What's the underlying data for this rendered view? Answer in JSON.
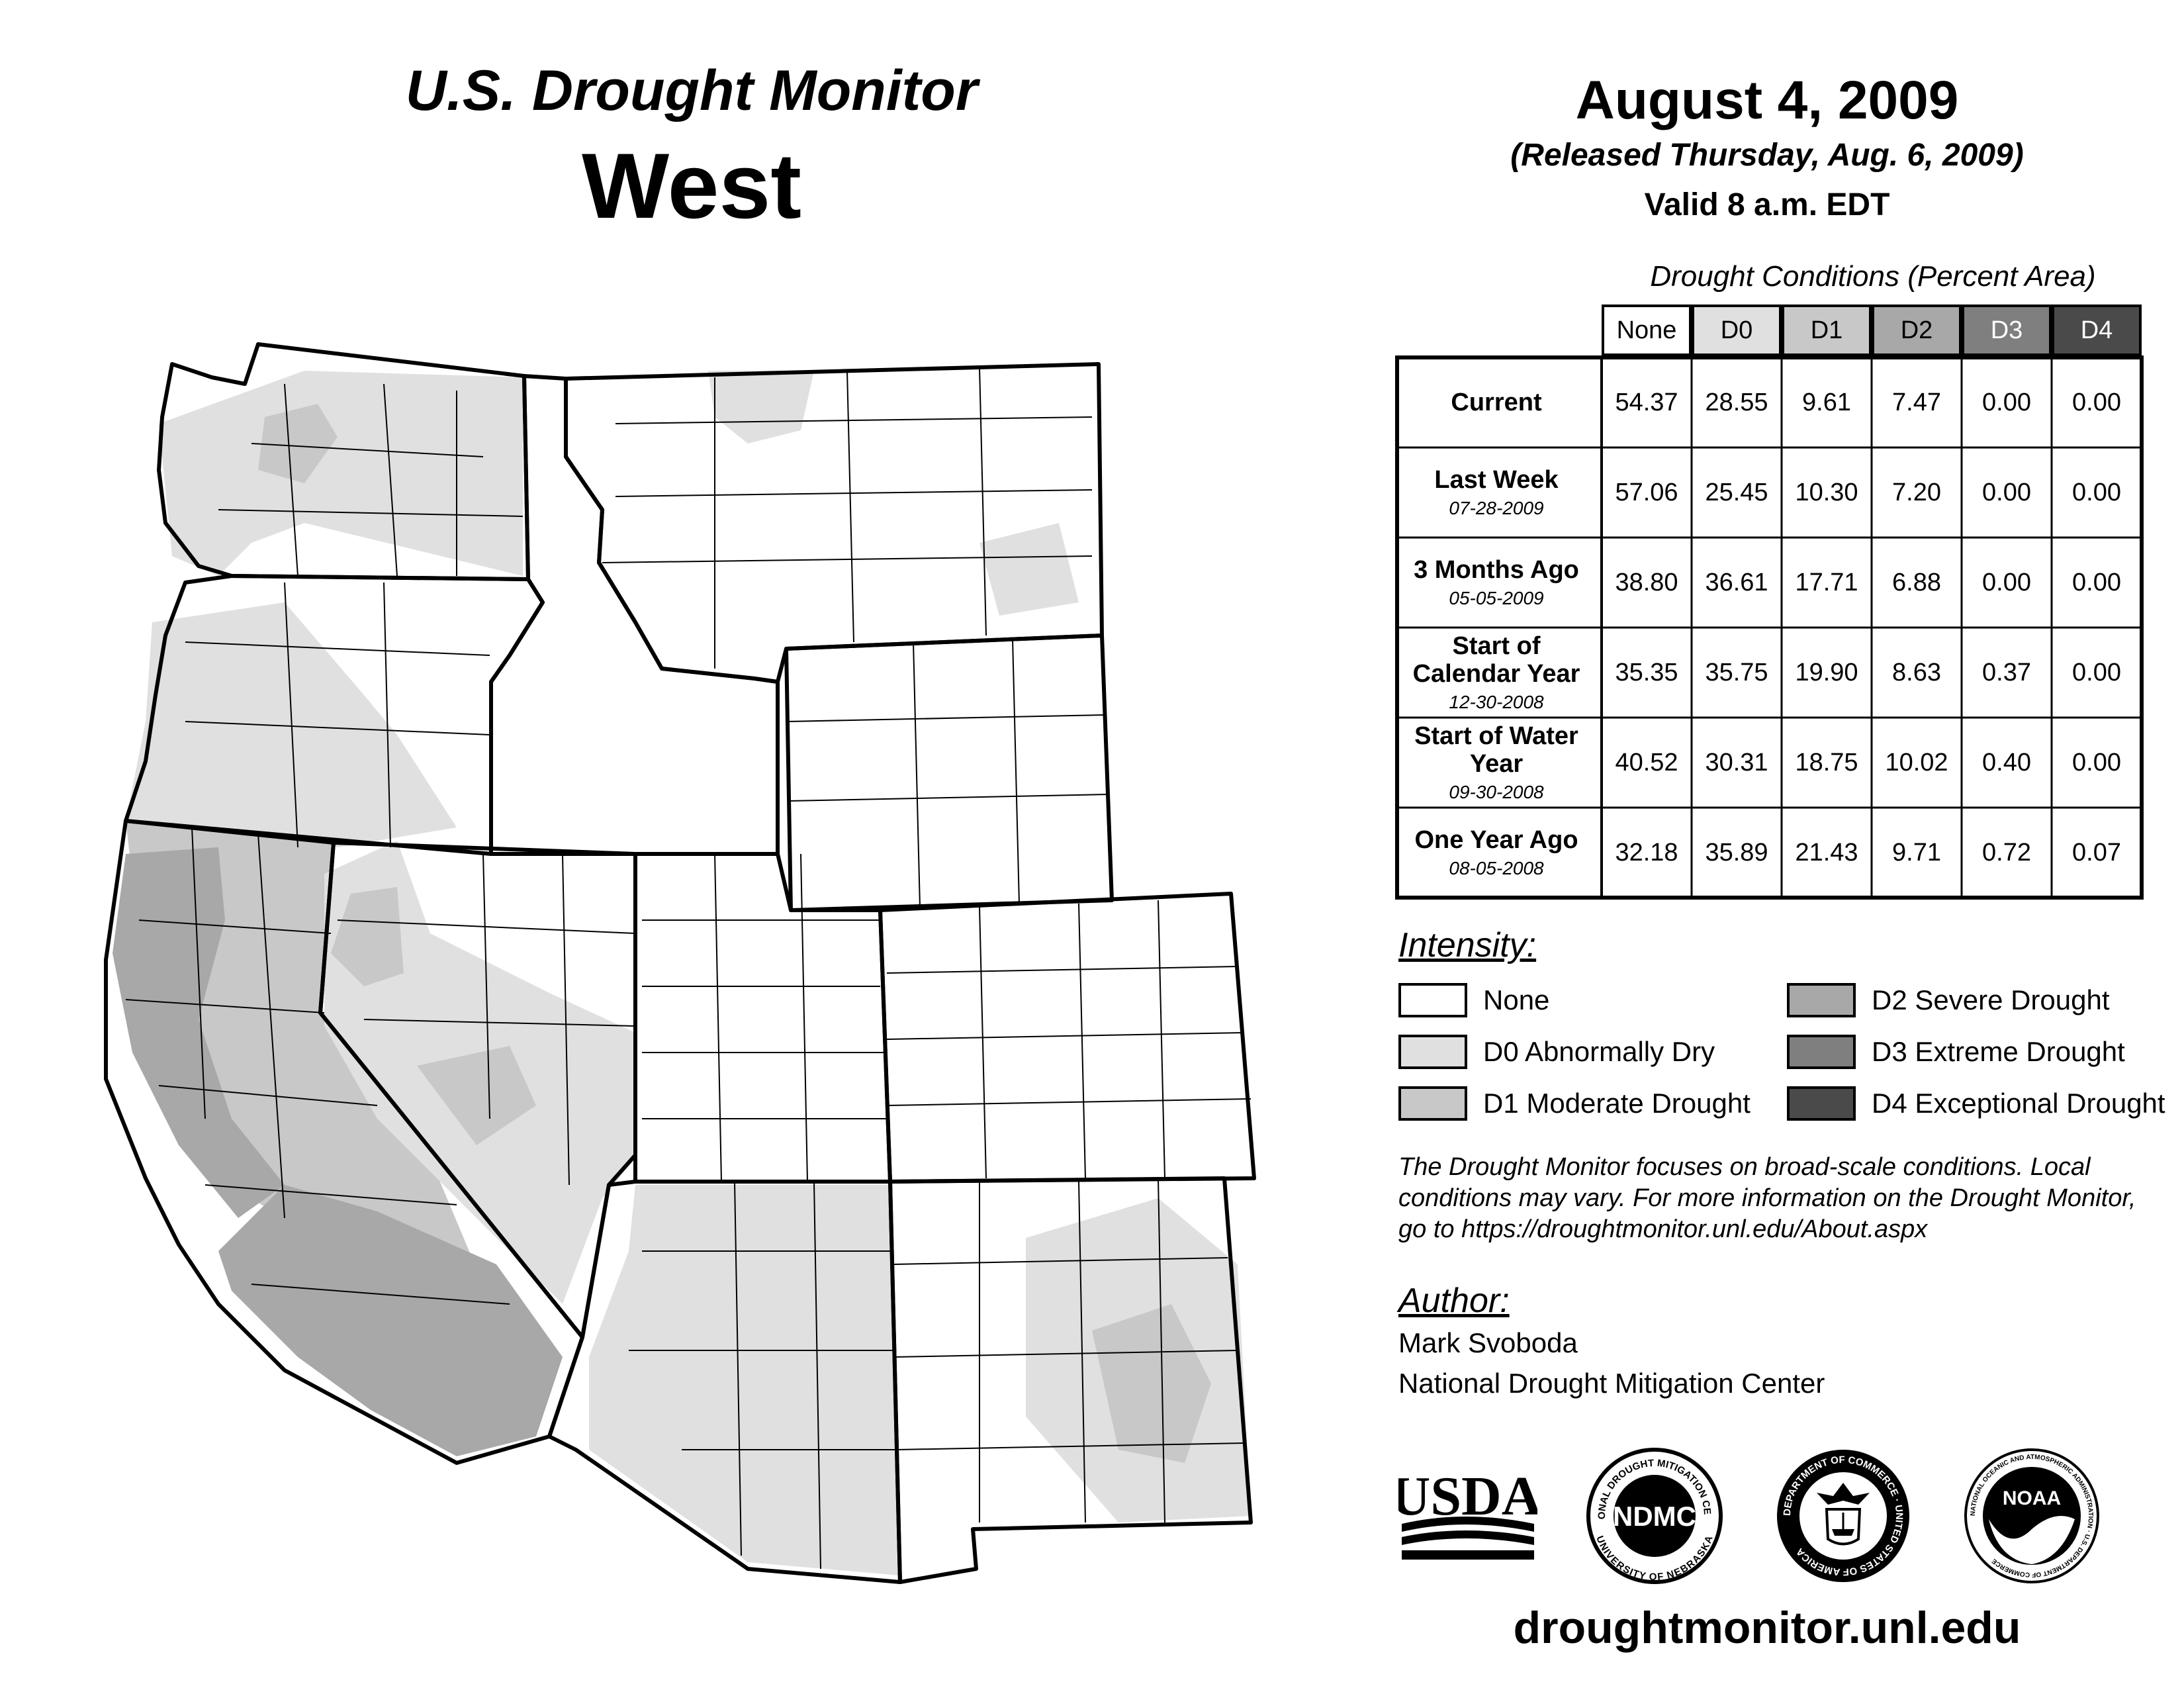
{
  "header": {
    "title": "U.S. Drought Monitor",
    "region": "West",
    "date": "August 4, 2009",
    "released": "(Released Thursday, Aug. 6, 2009)",
    "valid": "Valid 8 a.m. EDT"
  },
  "table": {
    "title": "Drought Conditions (Percent Area)",
    "columns": [
      "None",
      "D0",
      "D1",
      "D2",
      "D3",
      "D4"
    ],
    "column_colors": [
      "#ffffff",
      "#e0e0e0",
      "#c8c8c8",
      "#a8a8a8",
      "#7f7f7f",
      "#4a4a4a"
    ],
    "rows": [
      {
        "label": "Current",
        "date": "",
        "values": [
          "54.37",
          "28.55",
          "9.61",
          "7.47",
          "0.00",
          "0.00"
        ]
      },
      {
        "label": "Last Week",
        "date": "07-28-2009",
        "values": [
          "57.06",
          "25.45",
          "10.30",
          "7.20",
          "0.00",
          "0.00"
        ]
      },
      {
        "label": "3 Months Ago",
        "date": "05-05-2009",
        "values": [
          "38.80",
          "36.61",
          "17.71",
          "6.88",
          "0.00",
          "0.00"
        ]
      },
      {
        "label": "Start of Calendar Year",
        "date": "12-30-2008",
        "values": [
          "35.35",
          "35.75",
          "19.90",
          "8.63",
          "0.37",
          "0.00"
        ]
      },
      {
        "label": "Start of Water Year",
        "date": "09-30-2008",
        "values": [
          "40.52",
          "30.31",
          "18.75",
          "10.02",
          "0.40",
          "0.00"
        ]
      },
      {
        "label": "One Year Ago",
        "date": "08-05-2008",
        "values": [
          "32.18",
          "35.89",
          "21.43",
          "9.71",
          "0.72",
          "0.07"
        ]
      }
    ]
  },
  "legend": {
    "title": "Intensity:",
    "items": [
      {
        "label": "None",
        "color": "#ffffff"
      },
      {
        "label": "D0 Abnormally Dry",
        "color": "#e0e0e0"
      },
      {
        "label": "D1 Moderate Drought",
        "color": "#c8c8c8"
      },
      {
        "label": "D2 Severe Drought",
        "color": "#a8a8a8"
      },
      {
        "label": "D3 Extreme Drought",
        "color": "#7f7f7f"
      },
      {
        "label": "D4 Exceptional Drought",
        "color": "#4a4a4a"
      }
    ]
  },
  "note": "The Drought Monitor focuses on broad-scale conditions. Local conditions may vary. For more information on the Drought Monitor, go to https://droughtmonitor.unl.edu/About.aspx",
  "author": {
    "heading": "Author:",
    "name": "Mark Svoboda",
    "org": "National Drought Mitigation Center"
  },
  "logos": {
    "usda": "USDA",
    "ndmc": "NDMC",
    "ndmc_ring_top": "NATIONAL DROUGHT MITIGATION CENTER",
    "ndmc_ring_bottom": "UNIVERSITY OF NEBRASKA",
    "commerce_ring": "DEPARTMENT OF COMMERCE · UNITED STATES OF AMERICA",
    "noaa": "NOAA",
    "noaa_ring": "NATIONAL OCEANIC AND ATMOSPHERIC ADMINISTRATION · U.S. DEPARTMENT OF COMMERCE"
  },
  "url": "droughtmonitor.unl.edu",
  "map": {
    "regions": [
      {
        "name": "coastal-washington-d0",
        "category": "D0"
      },
      {
        "name": "oregon-west-d0",
        "category": "D0"
      },
      {
        "name": "california-north-d1",
        "category": "D1"
      },
      {
        "name": "california-coast-d2",
        "category": "D2"
      },
      {
        "name": "california-south-d2",
        "category": "D2"
      },
      {
        "name": "nevada-d0",
        "category": "D0"
      },
      {
        "name": "nevada-central-d1",
        "category": "D1"
      },
      {
        "name": "arizona-d0",
        "category": "D0"
      },
      {
        "name": "new-mexico-east-d0",
        "category": "D0"
      },
      {
        "name": "new-mexico-east-d1",
        "category": "D1"
      },
      {
        "name": "montana-north-d0",
        "category": "D0"
      },
      {
        "name": "washington-central-d1",
        "category": "D1"
      }
    ]
  }
}
